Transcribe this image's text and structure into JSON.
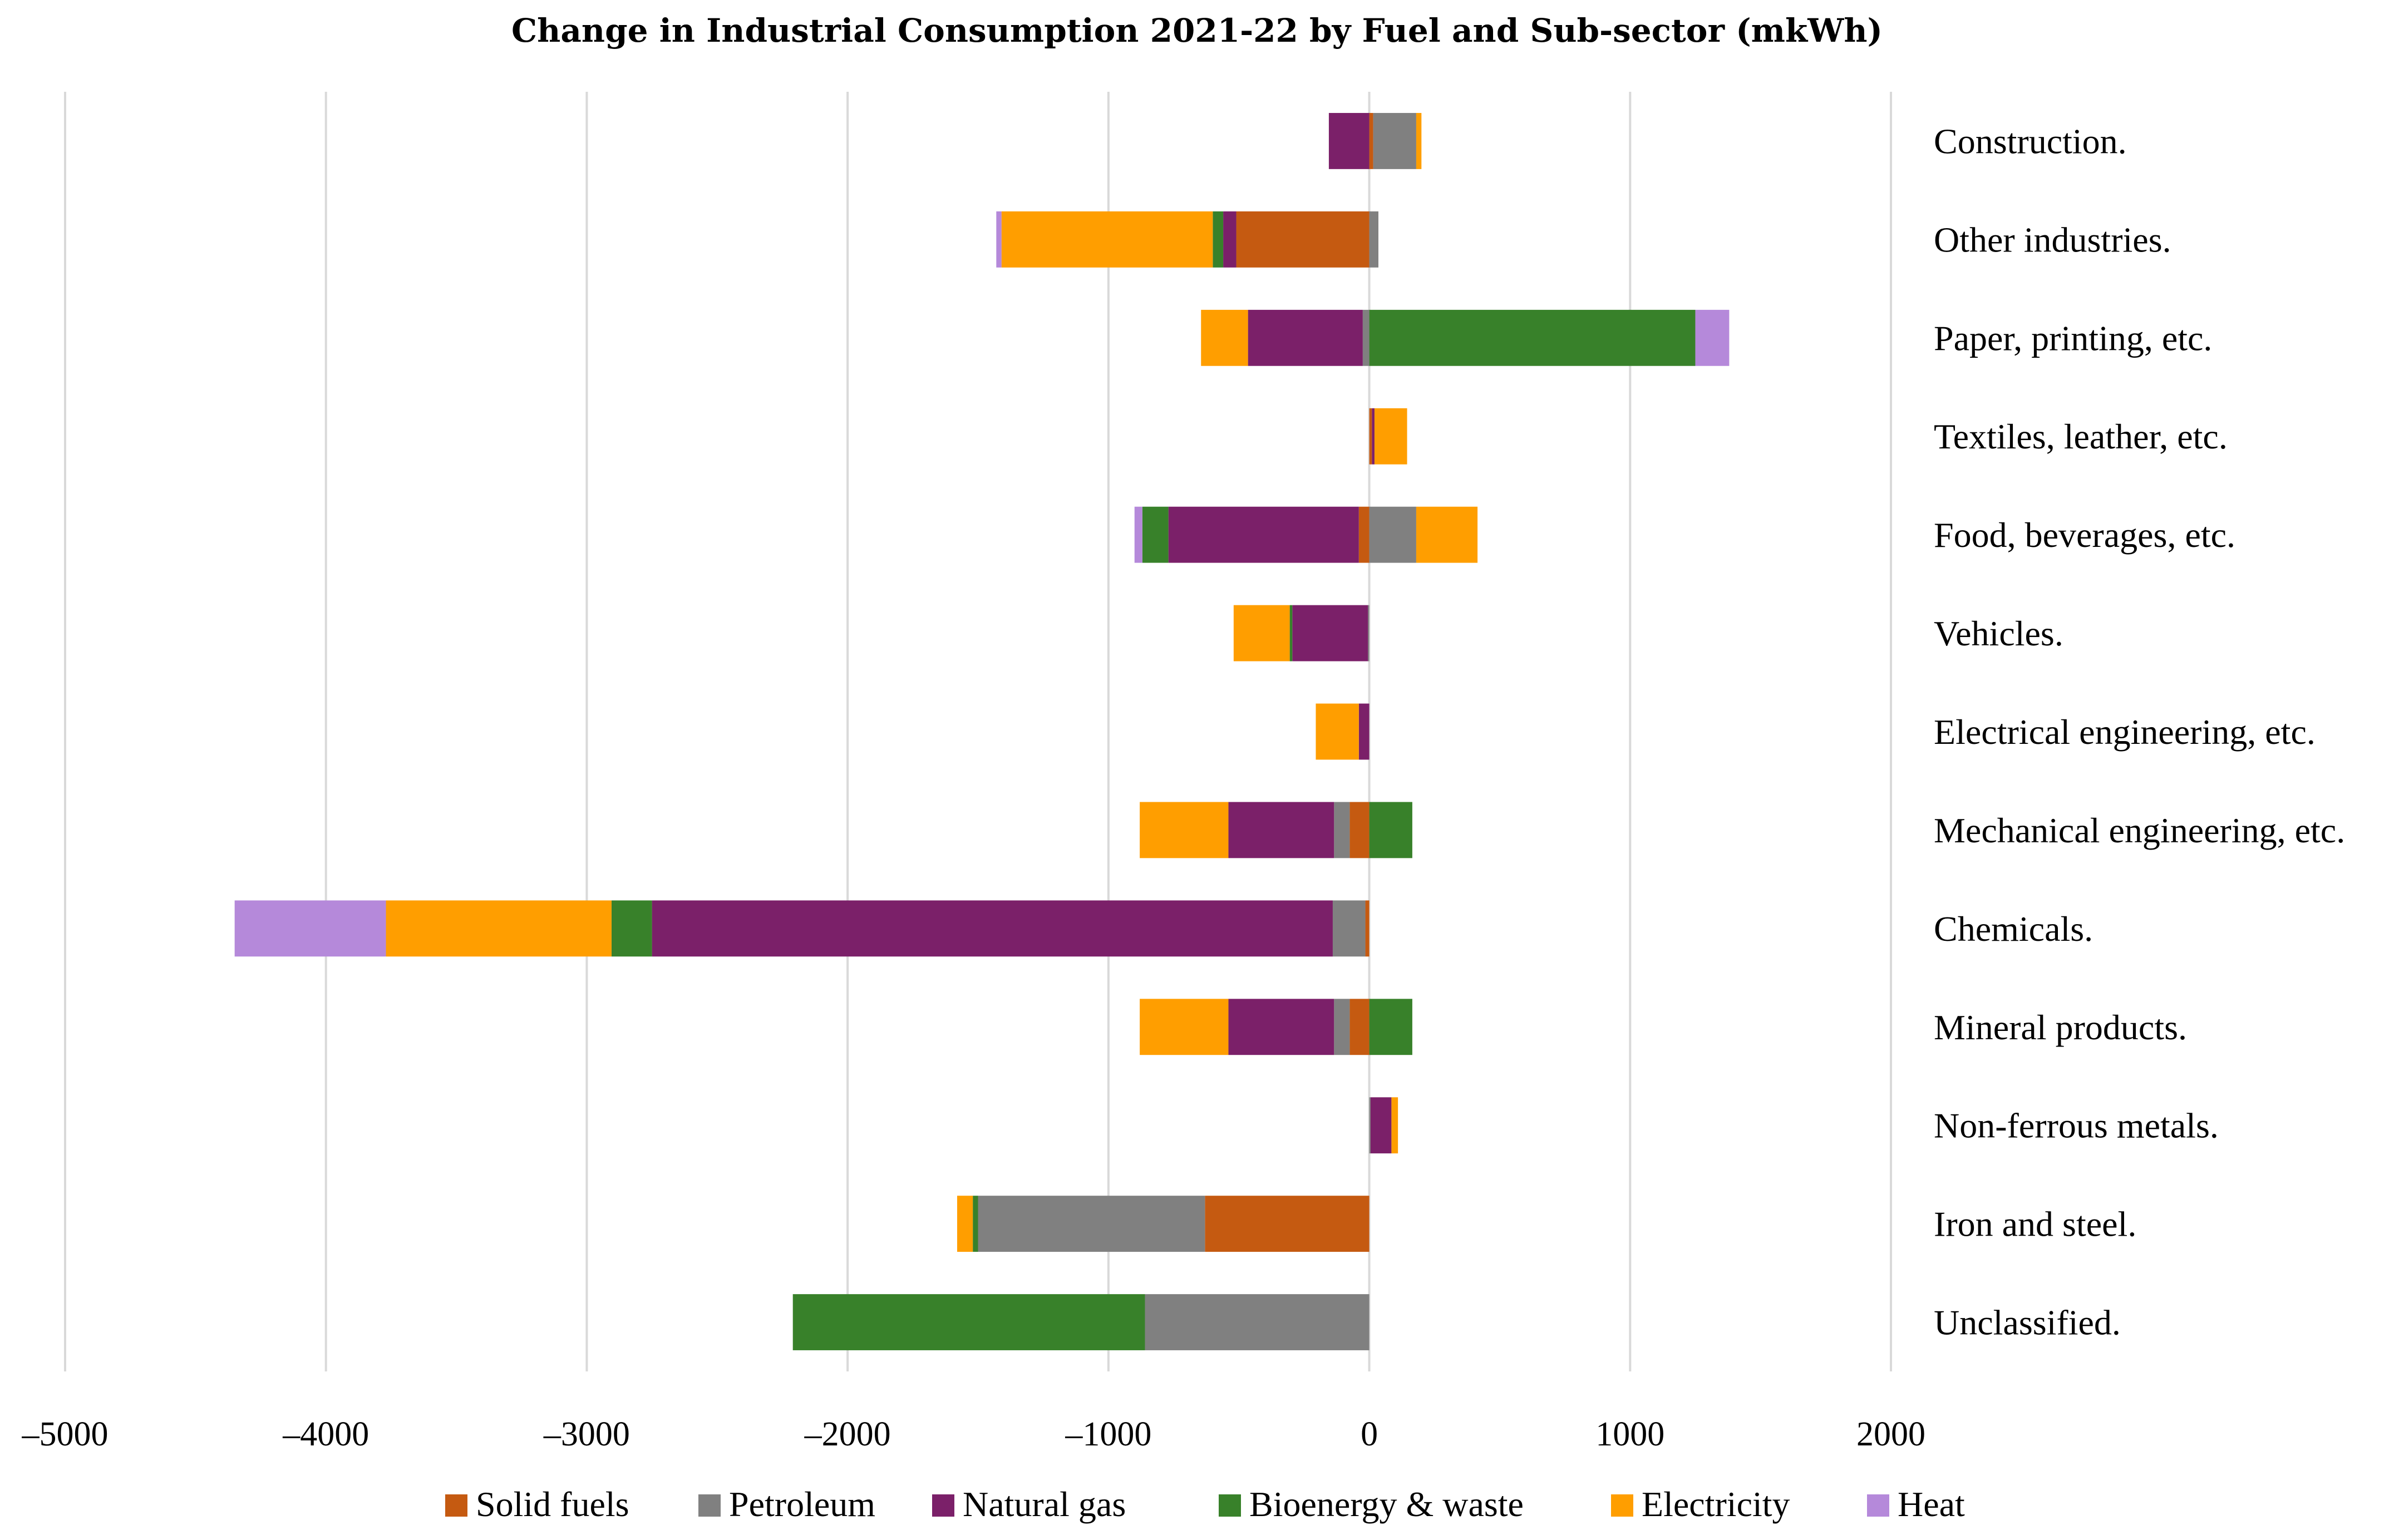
{
  "chart_data": {
    "type": "bar",
    "orientation": "horizontal",
    "stacked": true,
    "title": "Change in Industrial Consumption 2021-22 by Fuel and Sub-sector (mkWh)",
    "xlabel": "",
    "ylabel": "",
    "xlim": [
      -5000,
      2000
    ],
    "xticks": [
      -5000,
      -4000,
      -3000,
      -2000,
      -1000,
      0,
      1000,
      2000
    ],
    "xtick_labels": [
      "–5000",
      "–4000",
      "–3000",
      "–2000",
      "–1000",
      "0",
      "1000",
      "2000"
    ],
    "grid": "vertical",
    "legend_position": "bottom",
    "categories": [
      "Construction.",
      "Other industries.",
      "Paper, printing, etc.",
      "Textiles, leather, etc.",
      "Food, beverages, etc.",
      "Vehicles.",
      "Electrical engineering, etc.",
      "Mechanical engineering, etc.",
      "Chemicals.",
      "Mineral products.",
      "Non-ferrous metals.",
      "Iron and steel.",
      "Unclassified."
    ],
    "series": [
      {
        "name": "Solid fuels",
        "color": "#C55A11",
        "values": [
          15,
          -510,
          0,
          10,
          -40,
          0,
          0,
          -75,
          -15,
          -75,
          0,
          -630,
          0
        ]
      },
      {
        "name": "Petroleum",
        "color": "#808080",
        "values": [
          165,
          35,
          -25,
          0,
          180,
          -5,
          0,
          -60,
          -125,
          -60,
          5,
          -870,
          -860
        ]
      },
      {
        "name": "Natural gas",
        "color": "#7B2069",
        "values": [
          -155,
          -50,
          -440,
          10,
          -730,
          -290,
          -40,
          -405,
          -2610,
          -405,
          80,
          0,
          0
        ]
      },
      {
        "name": "Bioenergy & waste",
        "color": "#38812A",
        "values": [
          0,
          -40,
          1250,
          0,
          -100,
          -10,
          0,
          165,
          -155,
          165,
          0,
          -20,
          -1350
        ]
      },
      {
        "name": "Electricity",
        "color": "#FF9E00",
        "values": [
          20,
          -810,
          -180,
          125,
          235,
          -215,
          -165,
          -340,
          -865,
          -340,
          25,
          -60,
          0
        ]
      },
      {
        "name": "Heat",
        "color": "#B589DA",
        "values": [
          0,
          -20,
          130,
          0,
          -30,
          0,
          0,
          0,
          -580,
          0,
          0,
          0,
          0
        ]
      }
    ]
  }
}
